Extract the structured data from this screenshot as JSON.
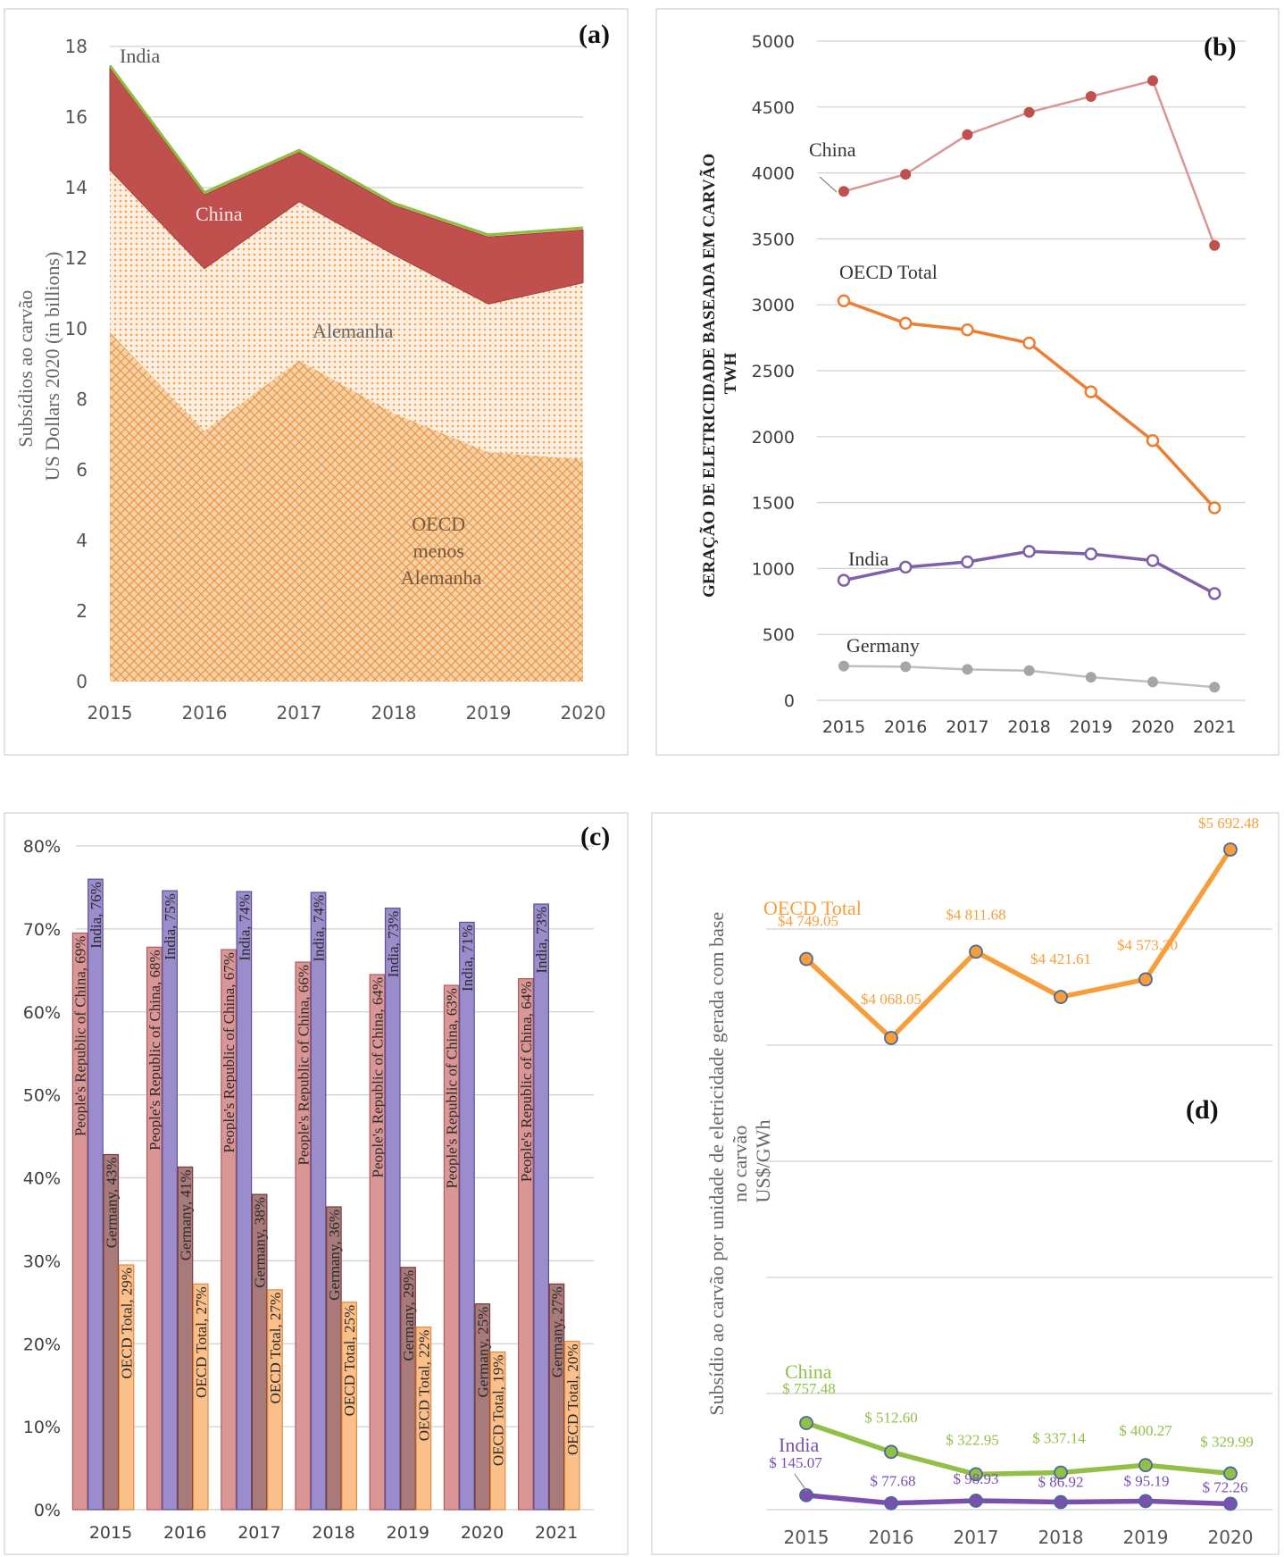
{
  "chart_data": [
    {
      "panel": "(a)",
      "type": "area",
      "stacked": true,
      "ylabel": "Subsídios ao carvão US Dollars 2020 (in billions)",
      "ylim": [
        0,
        18
      ],
      "yticks": [
        "0",
        "2",
        "4",
        "6",
        "8",
        "10",
        "12",
        "14",
        "16",
        "18"
      ],
      "x": [
        "2015",
        "2016",
        "2017",
        "2018",
        "2019",
        "2020"
      ],
      "series": [
        {
          "name": "OECD menos Alemanha",
          "values": [
            9.9,
            7.1,
            9.1,
            7.6,
            6.5,
            6.3
          ],
          "color": "#f0a868"
        },
        {
          "name": "Alemanha",
          "values": [
            4.6,
            4.6,
            4.5,
            4.5,
            4.2,
            5.0
          ],
          "color": "#f6c894"
        },
        {
          "name": "China",
          "values": [
            2.9,
            2.1,
            1.4,
            1.4,
            1.9,
            1.5
          ],
          "color": "#c0504d"
        },
        {
          "name": "India",
          "values": [
            0.06,
            0.06,
            0.06,
            0.06,
            0.06,
            0.06
          ],
          "color": "#8cbf3f"
        }
      ]
    },
    {
      "panel": "(b)",
      "type": "line",
      "ylabel": "GERAÇÃO DE ELETRICIDADE BASEADA EM CARVÃO TWH",
      "ylim": [
        0,
        5000
      ],
      "yticks": [
        "0",
        "500",
        "1000",
        "1500",
        "2000",
        "2500",
        "3000",
        "3500",
        "4000",
        "4500",
        "5000"
      ],
      "x": [
        "2015",
        "2016",
        "2017",
        "2018",
        "2019",
        "2020",
        "2021"
      ],
      "series": [
        {
          "name": "China",
          "values": [
            3860,
            3990,
            4290,
            4460,
            4580,
            4700,
            3450
          ],
          "color": "#d99694"
        },
        {
          "name": "OECD Total",
          "values": [
            3030,
            2860,
            2810,
            2710,
            2340,
            1970,
            1460
          ],
          "color": "#ed7d31"
        },
        {
          "name": "India",
          "values": [
            910,
            1010,
            1050,
            1130,
            1110,
            1060,
            810
          ],
          "color": "#7f5fa8"
        },
        {
          "name": "Germany",
          "values": [
            260,
            255,
            235,
            225,
            175,
            140,
            100
          ],
          "color": "#bfbfbf"
        }
      ]
    },
    {
      "panel": "(c)",
      "type": "bar",
      "ylim": [
        0,
        0.8
      ],
      "yticks": [
        "0%",
        "10%",
        "20%",
        "30%",
        "40%",
        "50%",
        "60%",
        "70%",
        "80%"
      ],
      "categories": [
        "2015",
        "2016",
        "2017",
        "2018",
        "2019",
        "2020",
        "2021"
      ],
      "series": [
        {
          "name": "People's Republic of China",
          "values": [
            0.695,
            0.678,
            0.675,
            0.66,
            0.645,
            0.632,
            0.64
          ],
          "color": "#d99694",
          "labels": [
            "People's Republic of China, 69%",
            "People's Republic of China, 68%",
            "People's Republic of China, 67%",
            "People's Republic of China, 66%",
            "People's Republic of China, 64%",
            "People's Republic of China, 63%",
            "People's Republic of China, 64%"
          ]
        },
        {
          "name": "India",
          "values": [
            0.76,
            0.746,
            0.745,
            0.744,
            0.725,
            0.708,
            0.73
          ],
          "color": "#9b8ccc",
          "labels": [
            "India, 76%",
            "India, 75%",
            "India, 74%",
            "India, 74%",
            "India, 73%",
            "India, 71%",
            "India, 73%"
          ]
        },
        {
          "name": "Germany",
          "values": [
            0.428,
            0.413,
            0.38,
            0.365,
            0.292,
            0.248,
            0.272
          ],
          "color": "#a87a7a",
          "labels": [
            "Germany, 43%",
            "Germany, 41%",
            "Germany, 38%",
            "Germany, 36%",
            "Germany, 29%",
            "Germany, 25%",
            "Germany, 27%"
          ]
        },
        {
          "name": "OECD Total",
          "values": [
            0.295,
            0.272,
            0.265,
            0.25,
            0.22,
            0.19,
            0.203
          ],
          "color": "#fbc08a",
          "labels": [
            "OECD Total, 29%",
            "OECD Total, 27%",
            "OECD Total, 27%",
            "OECD Total, 25%",
            "OECD Total, 22%",
            "OECD Total, 19%",
            "OECD Total, 20%"
          ]
        }
      ]
    },
    {
      "panel": "(d)",
      "type": "line",
      "ylabel": "Subsídio ao carvão por unidade de eletricidade gerada com base no carvão US$/GWh",
      "ylim": [
        0,
        6000
      ],
      "x": [
        "2015",
        "2016",
        "2017",
        "2018",
        "2019",
        "2020"
      ],
      "series": [
        {
          "name": "OECD Total",
          "values": [
            4749.05,
            4068.05,
            4811.68,
            4421.61,
            4573.2,
            5692.48
          ],
          "color": "#f79e3a",
          "labels": [
            "$4 749.05",
            "$4 068.05",
            "$4 811.68",
            "$4 421.61",
            "$4 573.20",
            "$5 692.48"
          ]
        },
        {
          "name": "China",
          "values": [
            757.48,
            512.6,
            322.95,
            337.14,
            400.27,
            329.99
          ],
          "color": "#92c047",
          "labels": [
            "$ 757.48",
            "$ 512.60",
            "$ 322.95",
            "$ 337.14",
            "$ 400.27",
            "$ 329.99"
          ]
        },
        {
          "name": "India",
          "values": [
            145.07,
            77.68,
            98.93,
            86.92,
            95.19,
            72.26
          ],
          "color": "#7b4fb0",
          "labels": [
            "$ 145.07",
            "$ 77.68",
            "$ 98.93",
            "$ 86.92",
            "$ 95.19",
            "$ 72.26"
          ]
        }
      ]
    }
  ]
}
